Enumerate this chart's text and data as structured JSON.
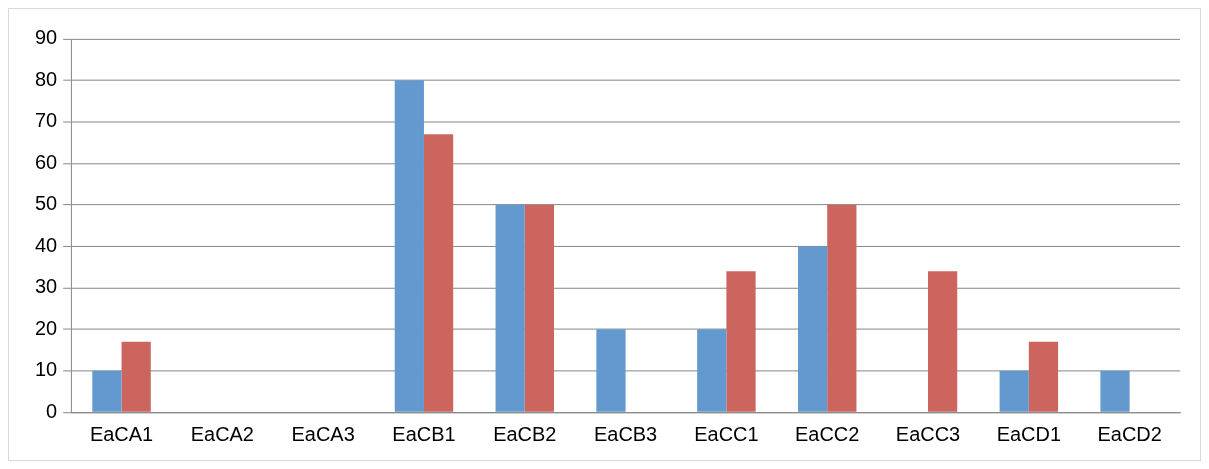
{
  "chart_data": {
    "type": "bar",
    "categories": [
      "EaCA1",
      "EaCA2",
      "EaCA3",
      "EaCB1",
      "EaCB2",
      "EaCB3",
      "EaCC1",
      "EaCC2",
      "EaCC3",
      "EaCD1",
      "EaCD2"
    ],
    "series": [
      {
        "color": "#6399cf",
        "values": [
          10,
          0,
          0,
          80,
          50,
          20,
          20,
          40,
          0,
          10,
          10
        ]
      },
      {
        "color": "#cc655e",
        "values": [
          17,
          0,
          0,
          67,
          50,
          0,
          34,
          50,
          34,
          17,
          0
        ]
      }
    ],
    "ylim": [
      0,
      90
    ],
    "yticks": [
      0,
      10,
      20,
      30,
      40,
      50,
      60,
      70,
      80,
      90
    ],
    "grid": "y",
    "legend": false
  }
}
